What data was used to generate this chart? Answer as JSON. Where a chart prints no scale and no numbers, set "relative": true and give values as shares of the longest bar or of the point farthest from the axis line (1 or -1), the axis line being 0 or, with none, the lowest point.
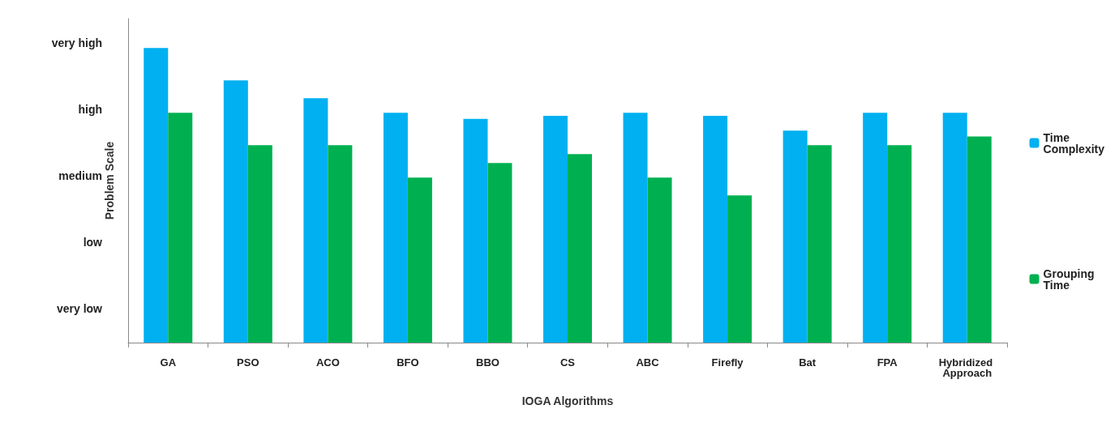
{
  "chart_data": {
    "type": "bar",
    "xlabel": "IOGA Algorithms",
    "ylabel": "Problem Scale",
    "relative": true,
    "categories": [
      "GA",
      "PSO",
      "ACO",
      "BFO",
      "BBO",
      "CS",
      "ABC",
      "Firefly",
      "Bat",
      "FPA",
      "Hybridized Approach"
    ],
    "series": [
      {
        "name": "Time Complexity",
        "color": "#00b0f0",
        "values": [
          1,
          0.89,
          0.83,
          0.78,
          0.76,
          0.77,
          0.78,
          0.77,
          0.72,
          0.78,
          0.78
        ]
      },
      {
        "name": "Grouping Time",
        "color": "#00b050",
        "values": [
          0.78,
          0.67,
          0.67,
          0.56,
          0.61,
          0.64,
          0.56,
          0.5,
          0.67,
          0.67,
          0.7
        ]
      }
    ],
    "annotations": [
      "very high",
      "high",
      "medium",
      "low",
      "very low"
    ],
    "legend": "right"
  }
}
